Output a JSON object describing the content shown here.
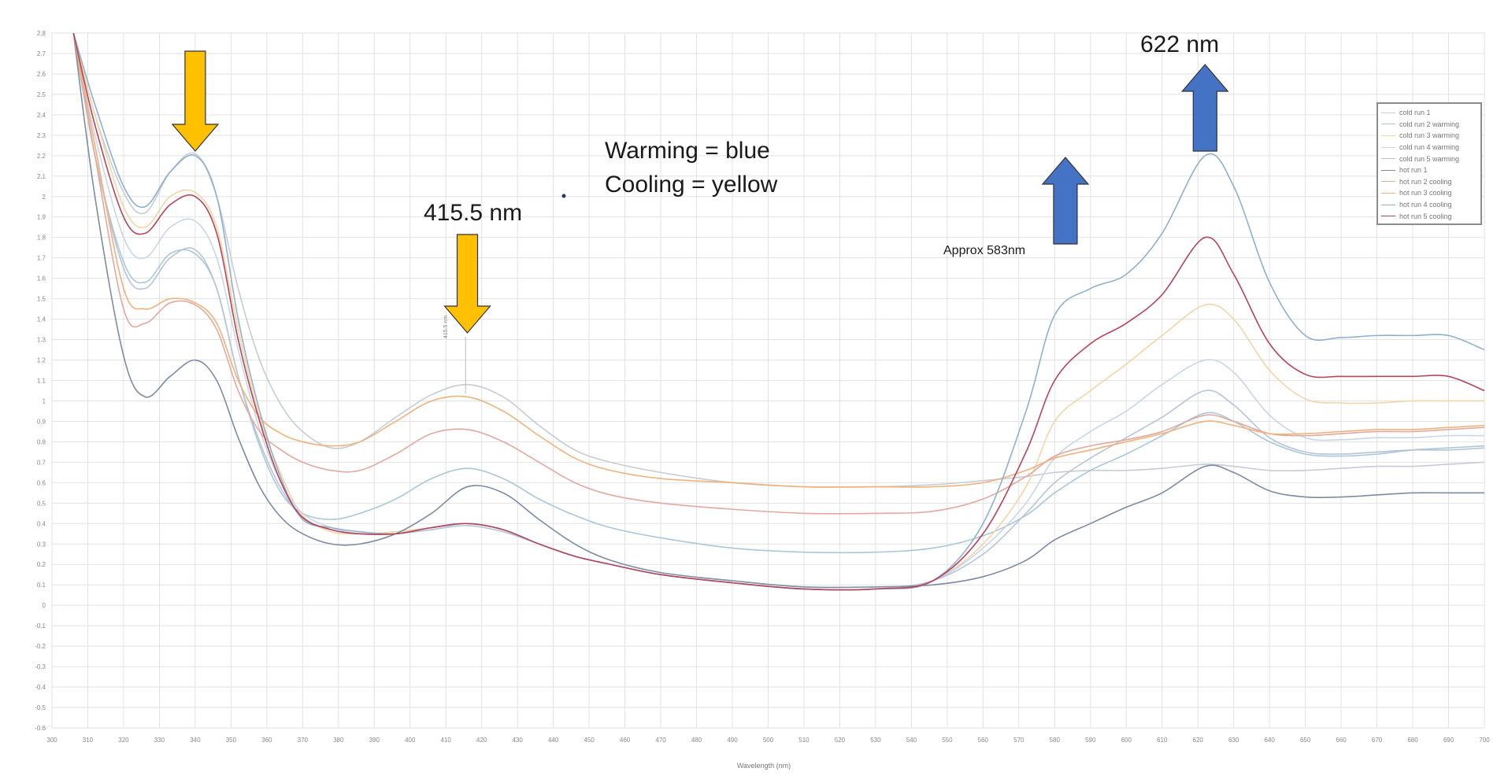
{
  "chart_data": {
    "type": "line",
    "xlabel": "Wavelength (nm)",
    "ylabel": "",
    "xlim": [
      300,
      700
    ],
    "ylim": [
      -0.6,
      2.8
    ],
    "xticks": [
      300,
      310,
      320,
      330,
      340,
      350,
      360,
      370,
      380,
      390,
      400,
      410,
      420,
      430,
      440,
      450,
      460,
      470,
      480,
      490,
      500,
      510,
      520,
      530,
      540,
      550,
      560,
      570,
      580,
      590,
      600,
      610,
      620,
      630,
      640,
      650,
      660,
      670,
      680,
      690,
      700
    ],
    "yticks": [
      "2.8",
      "2.7",
      "2.6",
      "2.5",
      "2.4",
      "2.3",
      "2.2",
      "2.1",
      "2",
      "1.9",
      "1.8",
      "1.7",
      "1.6",
      "1.5",
      "1.4",
      "1.3",
      "1.2",
      "1.1",
      "1",
      "0.9",
      "0.8",
      "0.7",
      "0.6",
      "0.5",
      "0.4",
      "0.3",
      "0.2",
      "0.1",
      "0",
      "-0.1",
      "-0.2",
      "-0.3",
      "-0.4",
      "-0.5",
      "-0.6"
    ],
    "grid": true,
    "legend_position": "top-right",
    "series": [
      {
        "name": "cold run 1",
        "color": "#c5ccd6",
        "x": [
          306,
          312,
          320,
          326,
          333,
          340,
          346,
          352,
          358,
          364,
          370,
          378,
          386,
          396,
          406,
          416,
          426,
          436,
          446,
          456,
          470,
          490,
          510,
          530,
          546,
          560,
          572,
          580,
          590,
          600,
          610,
          622,
          630,
          640,
          650,
          660,
          670,
          680,
          690,
          700
        ],
        "y": [
          2.8,
          2.4,
          2.02,
          1.92,
          2.12,
          2.21,
          2.0,
          1.55,
          1.2,
          0.98,
          0.85,
          0.77,
          0.8,
          0.92,
          1.03,
          1.08,
          1.02,
          0.88,
          0.76,
          0.7,
          0.65,
          0.6,
          0.58,
          0.58,
          0.59,
          0.61,
          0.63,
          0.65,
          0.66,
          0.66,
          0.67,
          0.69,
          0.68,
          0.66,
          0.66,
          0.67,
          0.68,
          0.68,
          0.69,
          0.7
        ]
      },
      {
        "name": "cold run 2 warming",
        "color": "#a9c7d9",
        "x": [
          306,
          312,
          320,
          326,
          333,
          340,
          346,
          352,
          358,
          364,
          370,
          378,
          386,
          396,
          406,
          416,
          426,
          436,
          446,
          456,
          470,
          490,
          510,
          530,
          546,
          560,
          572,
          580,
          590,
          600,
          610,
          622,
          630,
          640,
          650,
          660,
          670,
          680,
          690,
          700
        ],
        "y": [
          2.8,
          2.2,
          1.68,
          1.58,
          1.72,
          1.72,
          1.55,
          1.12,
          0.78,
          0.55,
          0.45,
          0.42,
          0.45,
          0.52,
          0.62,
          0.67,
          0.62,
          0.52,
          0.44,
          0.38,
          0.33,
          0.28,
          0.26,
          0.26,
          0.28,
          0.34,
          0.44,
          0.55,
          0.66,
          0.74,
          0.83,
          0.94,
          0.9,
          0.8,
          0.74,
          0.73,
          0.74,
          0.76,
          0.77,
          0.78
        ]
      },
      {
        "name": "cold run 3 warming",
        "color": "#f2d5a8",
        "x": [
          306,
          312,
          320,
          326,
          333,
          340,
          346,
          352,
          358,
          364,
          370,
          378,
          386,
          396,
          406,
          416,
          426,
          436,
          446,
          456,
          470,
          490,
          510,
          530,
          546,
          560,
          572,
          580,
          590,
          600,
          610,
          622,
          630,
          640,
          650,
          660,
          670,
          680,
          690,
          700
        ],
        "y": [
          2.8,
          2.4,
          1.95,
          1.85,
          2.0,
          2.02,
          1.85,
          1.35,
          0.92,
          0.64,
          0.44,
          0.36,
          0.35,
          0.36,
          0.38,
          0.4,
          0.37,
          0.3,
          0.24,
          0.2,
          0.15,
          0.11,
          0.08,
          0.08,
          0.12,
          0.3,
          0.58,
          0.9,
          1.05,
          1.18,
          1.32,
          1.47,
          1.4,
          1.15,
          1.01,
          0.99,
          0.99,
          1.0,
          1.0,
          1.0
        ]
      },
      {
        "name": "cold run 4 warming",
        "color": "#c9d6e6",
        "x": [
          306,
          312,
          320,
          326,
          333,
          340,
          346,
          352,
          358,
          364,
          370,
          378,
          386,
          396,
          406,
          416,
          426,
          436,
          446,
          456,
          470,
          490,
          510,
          530,
          546,
          560,
          572,
          580,
          590,
          600,
          610,
          622,
          630,
          640,
          650,
          660,
          670,
          680,
          690,
          700
        ],
        "y": [
          2.8,
          2.3,
          1.8,
          1.7,
          1.85,
          1.88,
          1.7,
          1.25,
          0.86,
          0.6,
          0.45,
          0.38,
          0.35,
          0.35,
          0.37,
          0.4,
          0.37,
          0.3,
          0.24,
          0.2,
          0.15,
          0.11,
          0.08,
          0.08,
          0.12,
          0.28,
          0.5,
          0.72,
          0.85,
          0.95,
          1.08,
          1.2,
          1.14,
          0.93,
          0.82,
          0.81,
          0.82,
          0.82,
          0.83,
          0.83
        ]
      },
      {
        "name": "cold run 5 warming",
        "color": "#b7c4d8",
        "x": [
          306,
          312,
          320,
          326,
          333,
          340,
          346,
          352,
          358,
          364,
          370,
          378,
          386,
          396,
          406,
          416,
          426,
          436,
          446,
          456,
          470,
          490,
          510,
          530,
          546,
          560,
          572,
          580,
          590,
          600,
          610,
          622,
          630,
          640,
          650,
          660,
          670,
          680,
          690,
          700
        ],
        "y": [
          2.8,
          2.2,
          1.65,
          1.55,
          1.7,
          1.74,
          1.55,
          1.12,
          0.8,
          0.57,
          0.43,
          0.37,
          0.35,
          0.35,
          0.37,
          0.39,
          0.36,
          0.3,
          0.24,
          0.2,
          0.15,
          0.11,
          0.08,
          0.08,
          0.12,
          0.25,
          0.45,
          0.6,
          0.72,
          0.82,
          0.92,
          1.05,
          0.98,
          0.82,
          0.75,
          0.74,
          0.75,
          0.76,
          0.76,
          0.77
        ]
      },
      {
        "name": "hot run 1",
        "color": "#7b8ca3",
        "x": [
          306,
          312,
          320,
          326,
          333,
          340,
          346,
          352,
          358,
          364,
          370,
          378,
          386,
          396,
          406,
          416,
          426,
          436,
          446,
          456,
          470,
          490,
          510,
          530,
          546,
          560,
          572,
          580,
          590,
          600,
          610,
          622,
          630,
          640,
          650,
          660,
          670,
          680,
          690,
          700
        ],
        "y": [
          2.8,
          2.0,
          1.22,
          1.02,
          1.12,
          1.2,
          1.1,
          0.82,
          0.58,
          0.43,
          0.35,
          0.3,
          0.3,
          0.35,
          0.45,
          0.58,
          0.55,
          0.42,
          0.3,
          0.22,
          0.16,
          0.12,
          0.09,
          0.09,
          0.1,
          0.14,
          0.22,
          0.32,
          0.4,
          0.48,
          0.55,
          0.68,
          0.65,
          0.56,
          0.53,
          0.53,
          0.54,
          0.55,
          0.55,
          0.55
        ]
      },
      {
        "name": "hot run 2 cooling",
        "color": "#e2a9a0",
        "x": [
          306,
          312,
          320,
          326,
          333,
          340,
          346,
          352,
          358,
          364,
          370,
          378,
          386,
          396,
          406,
          416,
          426,
          436,
          446,
          456,
          470,
          490,
          510,
          530,
          546,
          560,
          572,
          580,
          590,
          600,
          610,
          622,
          630,
          640,
          650,
          660,
          670,
          680,
          690,
          700
        ],
        "y": [
          2.8,
          2.2,
          1.45,
          1.38,
          1.48,
          1.47,
          1.35,
          1.05,
          0.85,
          0.76,
          0.7,
          0.66,
          0.66,
          0.74,
          0.84,
          0.86,
          0.8,
          0.7,
          0.6,
          0.54,
          0.5,
          0.47,
          0.45,
          0.45,
          0.46,
          0.52,
          0.63,
          0.73,
          0.78,
          0.81,
          0.85,
          0.93,
          0.9,
          0.84,
          0.83,
          0.84,
          0.85,
          0.85,
          0.86,
          0.87
        ]
      },
      {
        "name": "hot run 3 cooling",
        "color": "#f0b27a",
        "x": [
          306,
          312,
          320,
          326,
          333,
          340,
          346,
          352,
          358,
          364,
          370,
          378,
          386,
          396,
          406,
          416,
          426,
          436,
          446,
          456,
          470,
          490,
          510,
          530,
          546,
          560,
          572,
          580,
          590,
          600,
          610,
          622,
          630,
          640,
          650,
          660,
          670,
          680,
          690,
          700
        ],
        "y": [
          2.8,
          2.25,
          1.55,
          1.45,
          1.5,
          1.48,
          1.38,
          1.1,
          0.92,
          0.84,
          0.8,
          0.78,
          0.8,
          0.9,
          1.0,
          1.02,
          0.95,
          0.83,
          0.72,
          0.66,
          0.62,
          0.6,
          0.58,
          0.58,
          0.58,
          0.6,
          0.66,
          0.72,
          0.76,
          0.8,
          0.84,
          0.9,
          0.88,
          0.84,
          0.84,
          0.85,
          0.86,
          0.86,
          0.87,
          0.88
        ]
      },
      {
        "name": "hot run 4 cooling",
        "color": "#8fb0cc",
        "x": [
          306,
          312,
          320,
          326,
          333,
          340,
          346,
          352,
          358,
          364,
          370,
          378,
          386,
          396,
          406,
          416,
          426,
          436,
          446,
          456,
          470,
          490,
          510,
          530,
          546,
          560,
          572,
          580,
          590,
          600,
          610,
          622,
          630,
          640,
          650,
          660,
          670,
          680,
          690,
          700
        ],
        "y": [
          2.8,
          2.45,
          2.05,
          1.95,
          2.12,
          2.2,
          2.0,
          1.4,
          0.95,
          0.62,
          0.42,
          0.38,
          0.36,
          0.35,
          0.38,
          0.4,
          0.37,
          0.3,
          0.24,
          0.2,
          0.15,
          0.11,
          0.08,
          0.08,
          0.12,
          0.4,
          0.95,
          1.42,
          1.55,
          1.62,
          1.82,
          2.2,
          2.05,
          1.58,
          1.32,
          1.31,
          1.32,
          1.32,
          1.32,
          1.25
        ]
      },
      {
        "name": "hot run 5 cooling",
        "color": "#b5455a",
        "x": [
          306,
          312,
          320,
          326,
          333,
          340,
          346,
          352,
          358,
          364,
          370,
          378,
          386,
          396,
          406,
          416,
          426,
          436,
          446,
          456,
          470,
          490,
          510,
          530,
          546,
          560,
          572,
          580,
          590,
          600,
          610,
          622,
          630,
          640,
          650,
          660,
          670,
          680,
          690,
          700
        ],
        "y": [
          2.8,
          2.35,
          1.9,
          1.82,
          1.96,
          2.0,
          1.82,
          1.3,
          0.9,
          0.6,
          0.43,
          0.37,
          0.35,
          0.35,
          0.38,
          0.4,
          0.37,
          0.3,
          0.24,
          0.2,
          0.15,
          0.11,
          0.08,
          0.08,
          0.12,
          0.35,
          0.75,
          1.1,
          1.28,
          1.38,
          1.52,
          1.8,
          1.62,
          1.28,
          1.13,
          1.12,
          1.12,
          1.12,
          1.12,
          1.05
        ]
      }
    ],
    "annotations": {
      "peak_415": "415.5 nm",
      "peak_622": "622 nm",
      "shoulder_583": "Approx 583nm",
      "note_line1": "Warming = blue",
      "note_line2": "Cooling = yellow",
      "peak_marker_label": "415.5 nm"
    },
    "arrow_colors": {
      "cooling": "#ffc000",
      "warming": "#4472c4"
    }
  }
}
